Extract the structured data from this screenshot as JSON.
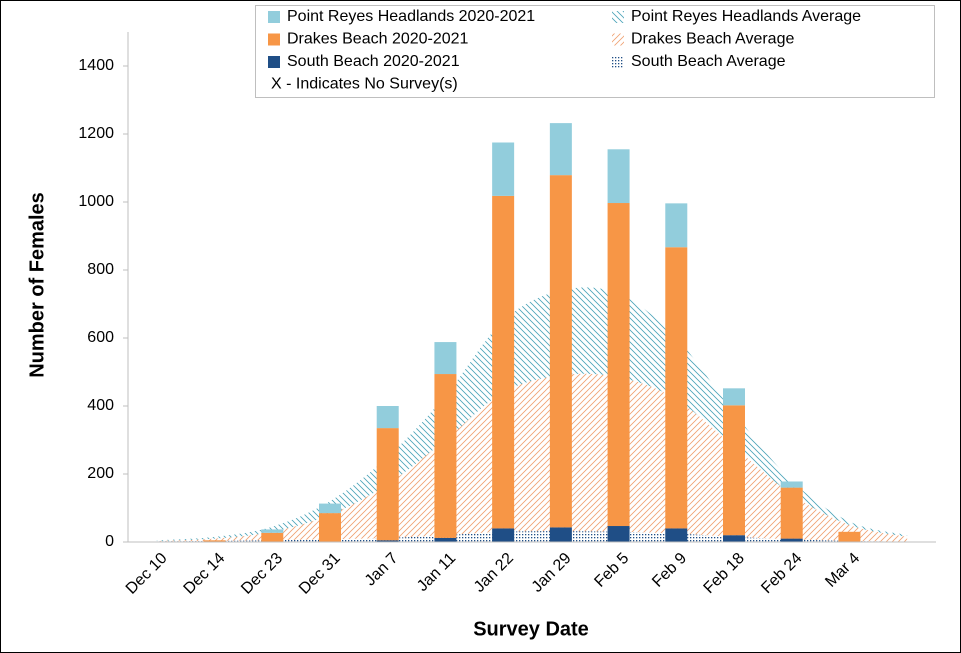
{
  "chart_data": {
    "type": "bar",
    "y_label": "Number of Females",
    "x_label": "Survey Date",
    "legend_note": "X - Indicates No Survey(s)",
    "categories": [
      "Dec 10",
      "Dec 14",
      "Dec 23",
      "Dec 31",
      "Jan 7",
      "Jan 11",
      "Jan 22",
      "Jan 29",
      "Feb 5",
      "Feb 9",
      "Feb 18",
      "Feb 24",
      "Mar 4",
      null
    ],
    "series": [
      {
        "name": "Point Reyes Headlands 2020-2021",
        "kind": "bar",
        "color": "#92cddc",
        "values": [
          0,
          0,
          10,
          28,
          65,
          94,
          157,
          153,
          158,
          129,
          50,
          18,
          0,
          null
        ]
      },
      {
        "name": "Drakes Beach 2020-2021",
        "kind": "bar",
        "color": "#f79646",
        "values": [
          0,
          5,
          27,
          85,
          330,
          482,
          978,
          1036,
          950,
          827,
          382,
          150,
          30,
          null
        ]
      },
      {
        "name": "South Beach 2020-2021",
        "kind": "bar",
        "color": "#1f4e86",
        "values": [
          0,
          0,
          0,
          0,
          5,
          12,
          40,
          43,
          47,
          40,
          20,
          10,
          0,
          null
        ]
      },
      {
        "name": "Point Reyes Headlands Average",
        "kind": "area",
        "pattern": "hatch-back",
        "color": "#4aa3b8",
        "values": [
          2,
          5,
          15,
          40,
          80,
          130,
          210,
          250,
          245,
          180,
          100,
          40,
          10,
          5
        ]
      },
      {
        "name": "Drakes Beach Average",
        "kind": "area",
        "pattern": "hatch-fwd",
        "color": "#f0a070",
        "values": [
          1,
          7,
          25,
          72,
          158,
          280,
          410,
          458,
          455,
          395,
          265,
          132,
          47,
          14
        ]
      },
      {
        "name": "South Beach Average",
        "kind": "area",
        "pattern": "dots",
        "color": "#1f4e86",
        "values": [
          2,
          3,
          5,
          8,
          12,
          20,
          30,
          32,
          30,
          25,
          15,
          8,
          3,
          1
        ]
      }
    ],
    "ylim": [
      0,
      1500
    ],
    "yticks": [
      0,
      200,
      400,
      600,
      800,
      1000,
      1200,
      1400
    ],
    "grid": false
  }
}
